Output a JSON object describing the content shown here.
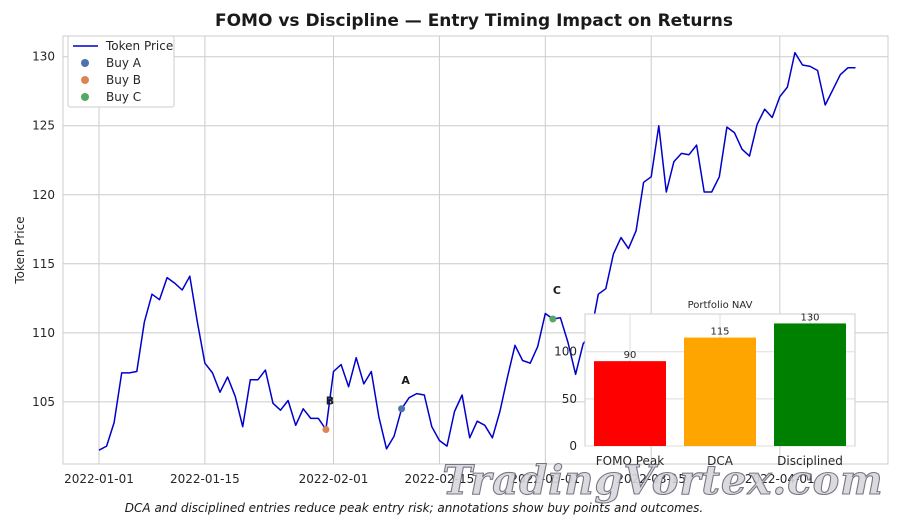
{
  "chart_data": {
    "type": "line",
    "title": "FOMO vs Discipline — Entry Timing Impact on Returns",
    "xlabel": "",
    "ylabel": "Token Price",
    "ylim": [
      100.5,
      131.5
    ],
    "yticks": [
      105,
      110,
      115,
      120,
      125,
      130
    ],
    "xticks": [
      "2022-01-01",
      "2022-01-15",
      "2022-02-01",
      "2022-02-15",
      "2022-03-01",
      "2022-03-15",
      "2022-04-01"
    ],
    "grid": true,
    "legend_position": "top-left",
    "series": [
      {
        "name": "Token Price",
        "color": "#0000cc",
        "points": [
          [
            "2022-01-01",
            101.5
          ],
          [
            "2022-01-02",
            101.8
          ],
          [
            "2022-01-03",
            103.5
          ],
          [
            "2022-01-04",
            107.1
          ],
          [
            "2022-01-05",
            107.1
          ],
          [
            "2022-01-06",
            107.2
          ],
          [
            "2022-01-07",
            110.8
          ],
          [
            "2022-01-08",
            112.8
          ],
          [
            "2022-01-09",
            112.4
          ],
          [
            "2022-01-10",
            114.0
          ],
          [
            "2022-01-11",
            113.6
          ],
          [
            "2022-01-12",
            113.1
          ],
          [
            "2022-01-13",
            114.1
          ],
          [
            "2022-01-14",
            110.8
          ],
          [
            "2022-01-15",
            107.8
          ],
          [
            "2022-01-16",
            107.1
          ],
          [
            "2022-01-17",
            105.7
          ],
          [
            "2022-01-18",
            106.8
          ],
          [
            "2022-01-19",
            105.4
          ],
          [
            "2022-01-20",
            103.2
          ],
          [
            "2022-01-21",
            106.6
          ],
          [
            "2022-01-22",
            106.6
          ],
          [
            "2022-01-23",
            107.3
          ],
          [
            "2022-01-24",
            104.9
          ],
          [
            "2022-01-25",
            104.4
          ],
          [
            "2022-01-26",
            105.1
          ],
          [
            "2022-01-27",
            103.3
          ],
          [
            "2022-01-28",
            104.5
          ],
          [
            "2022-01-29",
            103.8
          ],
          [
            "2022-01-30",
            103.8
          ],
          [
            "2022-01-31",
            103.0
          ],
          [
            "2022-02-01",
            107.2
          ],
          [
            "2022-02-02",
            107.7
          ],
          [
            "2022-02-03",
            106.1
          ],
          [
            "2022-02-04",
            108.2
          ],
          [
            "2022-02-05",
            106.3
          ],
          [
            "2022-02-06",
            107.2
          ],
          [
            "2022-02-07",
            103.9
          ],
          [
            "2022-02-08",
            101.6
          ],
          [
            "2022-02-09",
            102.5
          ],
          [
            "2022-02-10",
            104.5
          ],
          [
            "2022-02-11",
            105.3
          ],
          [
            "2022-02-12",
            105.6
          ],
          [
            "2022-02-13",
            105.5
          ],
          [
            "2022-02-14",
            103.2
          ],
          [
            "2022-02-15",
            102.2
          ],
          [
            "2022-02-16",
            101.8
          ],
          [
            "2022-02-17",
            104.3
          ],
          [
            "2022-02-18",
            105.5
          ],
          [
            "2022-02-19",
            102.4
          ],
          [
            "2022-02-20",
            103.6
          ],
          [
            "2022-02-21",
            103.3
          ],
          [
            "2022-02-22",
            102.4
          ],
          [
            "2022-02-23",
            104.3
          ],
          [
            "2022-02-24",
            106.8
          ],
          [
            "2022-02-25",
            109.1
          ],
          [
            "2022-02-26",
            108.0
          ],
          [
            "2022-02-27",
            107.8
          ],
          [
            "2022-02-28",
            109.0
          ],
          [
            "2022-03-01",
            111.4
          ],
          [
            "2022-03-02",
            111.0
          ],
          [
            "2022-03-03",
            111.1
          ],
          [
            "2022-03-04",
            109.3
          ],
          [
            "2022-03-05",
            107.0
          ],
          [
            "2022-03-06",
            109.2
          ],
          [
            "2022-03-07",
            109.9
          ],
          [
            "2022-03-08",
            112.8
          ],
          [
            "2022-03-09",
            113.2
          ],
          [
            "2022-03-10",
            115.7
          ],
          [
            "2022-03-11",
            116.9
          ],
          [
            "2022-03-12",
            116.1
          ],
          [
            "2022-03-13",
            117.4
          ],
          [
            "2022-03-14",
            120.9
          ],
          [
            "2022-03-15",
            121.3
          ],
          [
            "2022-03-16",
            125.0
          ],
          [
            "2022-03-17",
            120.2
          ],
          [
            "2022-03-18",
            122.4
          ],
          [
            "2022-03-19",
            123.0
          ],
          [
            "2022-03-20",
            122.9
          ],
          [
            "2022-03-21",
            123.6
          ],
          [
            "2022-03-22",
            120.2
          ],
          [
            "2022-03-23",
            120.2
          ],
          [
            "2022-03-24",
            121.3
          ],
          [
            "2022-03-25",
            124.9
          ],
          [
            "2022-03-26",
            124.5
          ],
          [
            "2022-03-27",
            123.3
          ],
          [
            "2022-03-28",
            122.8
          ],
          [
            "2022-03-29",
            125.1
          ],
          [
            "2022-03-30",
            126.2
          ],
          [
            "2022-03-31",
            125.6
          ],
          [
            "2022-04-01",
            127.1
          ],
          [
            "2022-04-02",
            127.8
          ],
          [
            "2022-04-03",
            130.3
          ],
          [
            "2022-04-04",
            129.4
          ],
          [
            "2022-04-05",
            129.3
          ],
          [
            "2022-04-06",
            129.0
          ],
          [
            "2022-04-07",
            126.5
          ],
          [
            "2022-04-08",
            127.6
          ],
          [
            "2022-04-09",
            128.7
          ],
          [
            "2022-04-10",
            129.2
          ],
          [
            "2022-04-11",
            129.2
          ]
        ]
      },
      {
        "name": "Buy A",
        "type": "scatter",
        "color": "#4c72b0",
        "points": [
          [
            "2022-02-10",
            104.5
          ]
        ],
        "annotation": "A"
      },
      {
        "name": "Buy B",
        "type": "scatter",
        "color": "#dd8452",
        "points": [
          [
            "2022-01-31",
            103.0
          ]
        ],
        "annotation": "B"
      },
      {
        "name": "Buy C",
        "type": "scatter",
        "color": "#55a868",
        "points": [
          [
            "2022-03-02",
            111.0
          ]
        ],
        "annotation": "C"
      }
    ],
    "inset": {
      "type": "bar",
      "title": "Portfolio NAV",
      "categories": [
        "FOMO Peak",
        "DCA",
        "Disciplined"
      ],
      "values": [
        90,
        115,
        130
      ],
      "colors": [
        "#ff0000",
        "#ffa500",
        "#008000"
      ],
      "ylim": [
        0,
        140
      ],
      "yticks": [
        0,
        50,
        100
      ]
    }
  },
  "caption": "DCA and disciplined entries reduce peak entry risk; annotations show buy points and outcomes.",
  "watermark": "TradingVortex.com"
}
